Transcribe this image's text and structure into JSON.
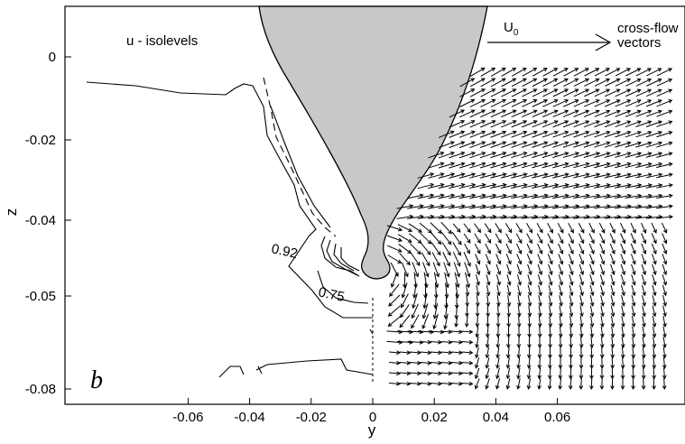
{
  "chart_data": {
    "type": "contour+vector",
    "xlabel": "y",
    "ylabel": "z",
    "xlim": [
      -0.075,
      0.075
    ],
    "ylim": [
      -0.085,
      0.012
    ],
    "xticks": [
      -0.06,
      -0.04,
      -0.02,
      0,
      0.02,
      0.04,
      0.06
    ],
    "xtick_labels": [
      "-0.06",
      "-0.04",
      "-0.02",
      "0",
      "0.02",
      "0.04",
      "0.06"
    ],
    "yticks": [
      0,
      -0.02,
      -0.04,
      -0.05,
      -0.08
    ],
    "ytick_labels": [
      "0",
      "-0.02",
      "-0.04",
      "-0.05",
      "-0.08"
    ],
    "annotations": {
      "field_label": "u - isolevels",
      "panel_label": "b",
      "reference_label": "U",
      "reference_subscript": "0",
      "vector_label_line1": "cross-flow",
      "vector_label_line2": "vectors",
      "contour_label_outer": "0.92",
      "contour_label_inner": "0.75"
    },
    "contour_levels": [
      0.92,
      0.75
    ],
    "body_color": "#c8c8c8",
    "grid": false
  }
}
